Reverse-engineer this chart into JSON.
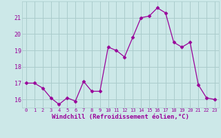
{
  "hours": [
    0,
    1,
    2,
    3,
    4,
    5,
    6,
    7,
    8,
    9,
    10,
    11,
    12,
    13,
    14,
    15,
    16,
    17,
    18,
    19,
    20,
    21,
    22,
    23
  ],
  "values": [
    17.0,
    17.0,
    16.7,
    16.1,
    15.7,
    16.1,
    15.9,
    17.1,
    16.5,
    16.5,
    19.2,
    19.0,
    18.6,
    19.8,
    21.0,
    21.1,
    21.6,
    21.3,
    19.5,
    19.2,
    19.5,
    16.9,
    16.1,
    16.0
  ],
  "line_color": "#990099",
  "marker": "D",
  "marker_size": 2.5,
  "bg_color": "#cce8e8",
  "grid_color": "#aacccc",
  "xlabel": "Windchill (Refroidissement éolien,°C)",
  "ylim": [
    15.5,
    22.0
  ],
  "yticks": [
    16,
    17,
    18,
    19,
    20,
    21
  ],
  "xticks": [
    0,
    1,
    2,
    3,
    4,
    5,
    6,
    7,
    8,
    9,
    10,
    11,
    12,
    13,
    14,
    15,
    16,
    17,
    18,
    19,
    20,
    21,
    22,
    23
  ],
  "label_color": "#990099",
  "tick_color": "#990099",
  "spine_color": "#aacccc"
}
